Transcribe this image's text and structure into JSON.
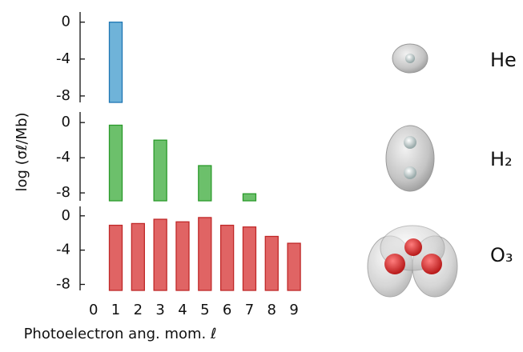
{
  "chart_data": {
    "type": "bar",
    "x_label": "Photoelectron ang. mom. ℓ",
    "y_label": "log (σℓ/Mb)",
    "x": [
      0,
      1,
      2,
      3,
      4,
      5,
      6,
      7,
      8,
      9
    ],
    "xlim": [
      -0.6,
      9.5
    ],
    "panels": [
      {
        "label": "He",
        "color": "#6fb3d9",
        "edge": "#1f77b4",
        "ylim": [
          -8.7,
          1.1
        ],
        "yticks": [
          0,
          -4,
          -8
        ],
        "values": [
          null,
          0,
          null,
          null,
          null,
          null,
          null,
          null,
          null,
          null
        ]
      },
      {
        "label": "H₂",
        "color": "#6cc06b",
        "edge": "#2a9a2a",
        "ylim": [
          -8.9,
          1.2
        ],
        "yticks": [
          0,
          -4,
          -8
        ],
        "values": [
          null,
          -0.3,
          null,
          -2.0,
          null,
          -4.9,
          null,
          -8.1,
          null,
          null
        ]
      },
      {
        "label": "O₃",
        "color": "#e06464",
        "edge": "#c02828",
        "ylim": [
          -8.7,
          1.1
        ],
        "yticks": [
          0,
          -4,
          -8
        ],
        "values": [
          null,
          -1.1,
          -0.9,
          -0.4,
          -0.7,
          -0.2,
          -1.1,
          -1.3,
          -2.4,
          -3.2
        ]
      }
    ]
  }
}
